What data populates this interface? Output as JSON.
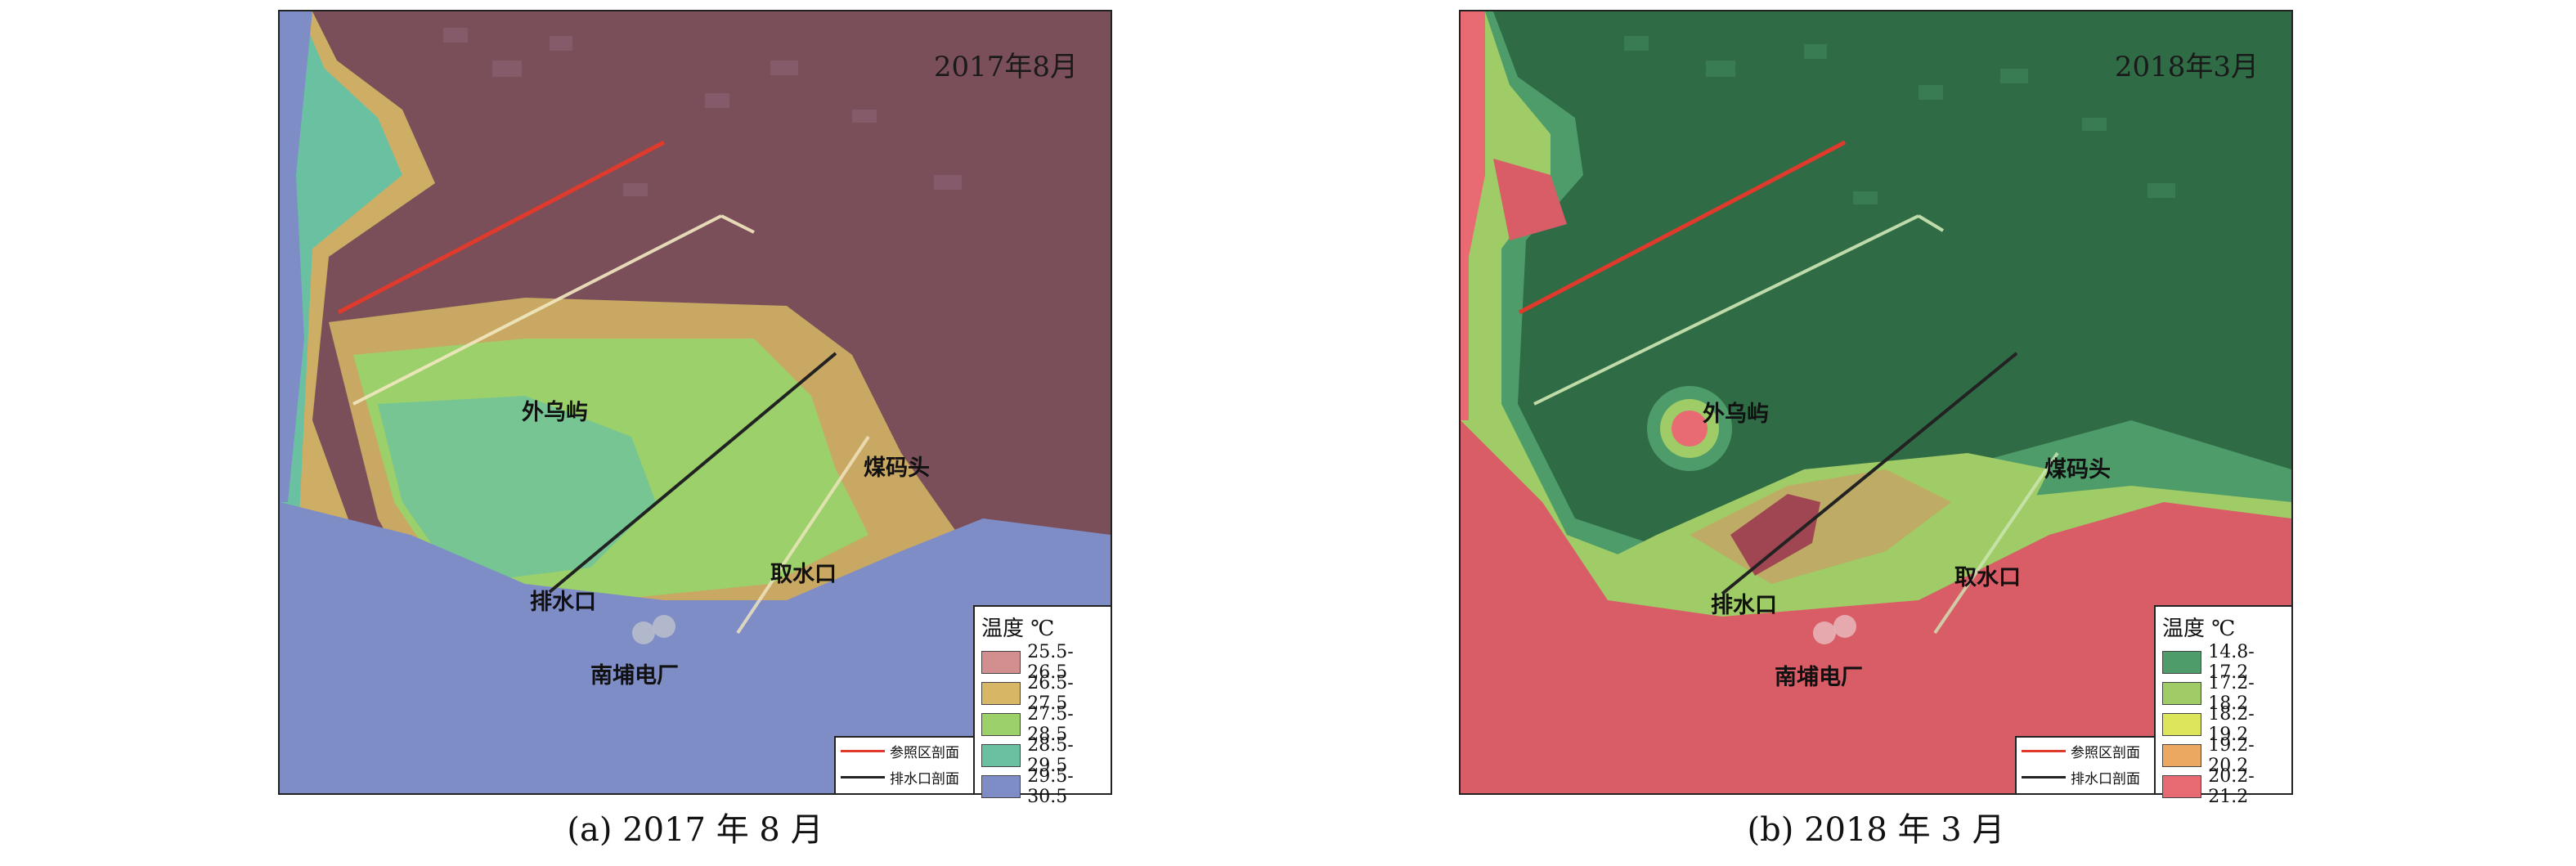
{
  "panels": [
    {
      "date_label": "2017年8月",
      "caption": "(a) 2017 年 8 月",
      "legend_title": "温度 ℃",
      "legend": [
        {
          "label": "25.5-26.5",
          "color": "#d38f90"
        },
        {
          "label": "26.5-27.5",
          "color": "#d7b766"
        },
        {
          "label": "27.5-28.5",
          "color": "#9bd06a"
        },
        {
          "label": "28.5-29.5",
          "color": "#6ac1a1"
        },
        {
          "label": "29.5-30.5",
          "color": "#7f8dc7"
        }
      ],
      "line_key": [
        {
          "label": "参照区剖面",
          "color": "#e03a2c"
        },
        {
          "label": "排水口剖面",
          "color": "#222222"
        }
      ],
      "places": {
        "island": "外乌屿",
        "pier": "煤码头",
        "outlet": "排水口",
        "intake": "取水口",
        "plant": "南埔电厂"
      }
    },
    {
      "date_label": "2018年3月",
      "caption": "(b) 2018 年 3 月",
      "legend_title": "温度 ℃",
      "legend": [
        {
          "label": "14.8-17.2",
          "color": "#4f9c6b"
        },
        {
          "label": "17.2-18.2",
          "color": "#9fcc66"
        },
        {
          "label": "18.2-19.2",
          "color": "#dde65a"
        },
        {
          "label": "19.2-20.2",
          "color": "#eba860"
        },
        {
          "label": "20.2-21.2",
          "color": "#e86a72"
        }
      ],
      "line_key": [
        {
          "label": "参照区剖面",
          "color": "#e03a2c"
        },
        {
          "label": "排水口剖面",
          "color": "#222222"
        }
      ],
      "places": {
        "island": "外乌屿",
        "pier": "煤码头",
        "outlet": "排水口",
        "intake": "取水口",
        "plant": "南埔电厂"
      }
    }
  ]
}
